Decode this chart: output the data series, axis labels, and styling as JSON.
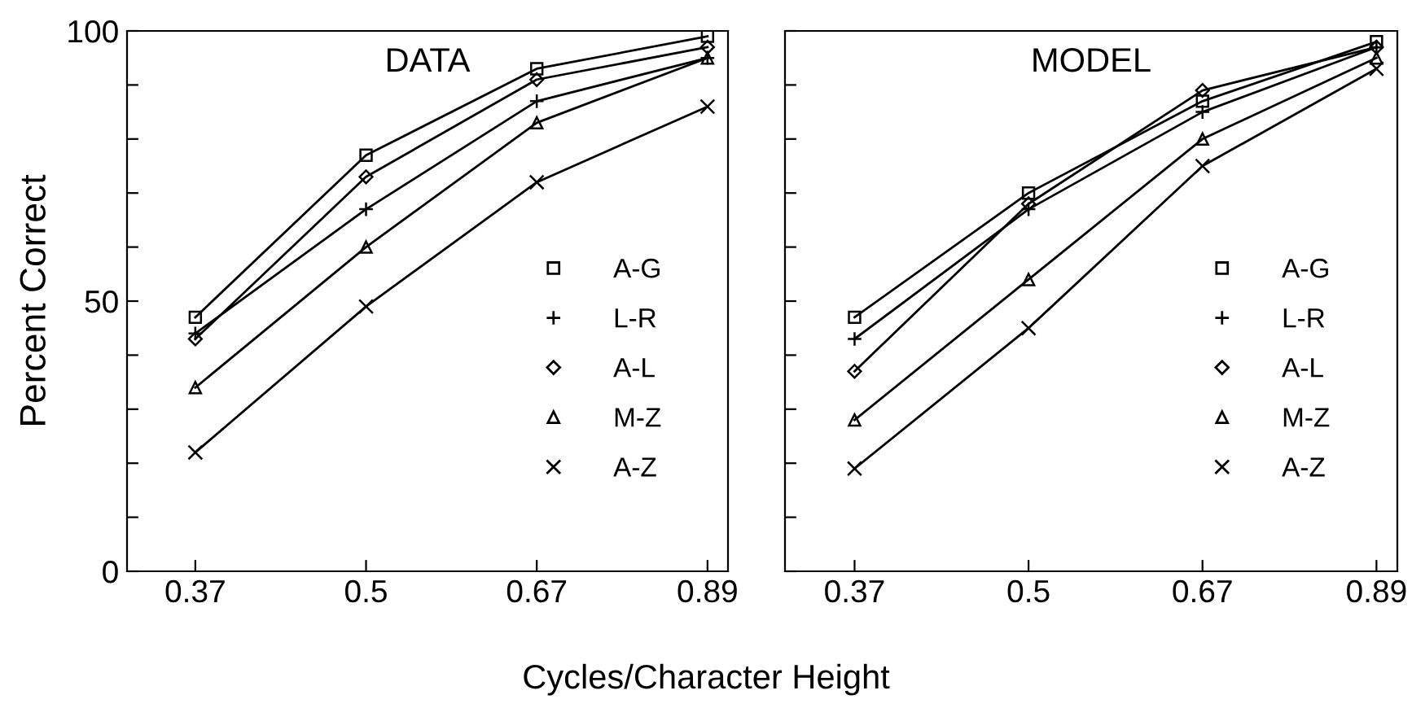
{
  "chart_data": [
    {
      "type": "line",
      "title": "DATA",
      "xlabel": "Cycles/Character Height",
      "ylabel": "Percent Correct",
      "categories": [
        "0.37",
        "0.5",
        "0.67",
        "0.89"
      ],
      "ylim": [
        0,
        100
      ],
      "yticks": [
        0,
        {
          "value": 10,
          "label": null
        },
        {
          "value": 20,
          "label": null
        },
        {
          "value": 30,
          "label": null
        },
        {
          "value": 40,
          "label": null
        },
        50,
        {
          "value": 60,
          "label": null
        },
        {
          "value": 70,
          "label": null
        },
        {
          "value": 80,
          "label": null
        },
        {
          "value": 90,
          "label": null
        },
        100
      ],
      "grid": false,
      "legend": "bottom right",
      "series": [
        {
          "name": "A-G",
          "color": "#000000",
          "marker": "square",
          "values": [
            47,
            77,
            93,
            99
          ]
        },
        {
          "name": "L-R",
          "color": "#000000",
          "marker": "cross",
          "values": [
            44,
            67,
            87,
            95
          ]
        },
        {
          "name": "A-L",
          "color": "#000000",
          "marker": "diamond",
          "values": [
            43,
            73,
            91,
            97
          ]
        },
        {
          "name": "M-Z",
          "color": "#000000",
          "marker": "triangle",
          "values": [
            34,
            60,
            83,
            95
          ]
        },
        {
          "name": "A-Z",
          "color": "#000000",
          "marker": "cross",
          "values": [
            22,
            49,
            72,
            86
          ]
        }
      ]
    },
    {
      "type": "line",
      "title": "MODEL",
      "categories": [
        "0.37",
        "0.5",
        "0.67",
        "0.89"
      ],
      "ylim": [
        0,
        100
      ],
      "yticks": [
        0,
        {
          "value": 10,
          "label": null
        },
        {
          "value": 20,
          "label": null
        },
        {
          "value": 30,
          "label": null
        },
        {
          "value": 40,
          "label": null
        },
        50,
        {
          "value": 60,
          "label": null
        },
        {
          "value": 70,
          "label": null
        },
        {
          "value": 80,
          "label": null
        },
        {
          "value": 90,
          "label": null
        },
        100
      ],
      "tick_labels": "x",
      "grid": false,
      "legend": "bottom right",
      "series": [
        {
          "name": "A-G",
          "color": "#000000",
          "marker": "square",
          "values": [
            47,
            70,
            87,
            98
          ]
        },
        {
          "name": "L-R",
          "color": "#000000",
          "marker": "cross",
          "values": [
            43,
            67,
            85,
            97
          ]
        },
        {
          "name": "A-L",
          "color": "#000000",
          "marker": "diamond",
          "values": [
            37,
            68,
            89,
            97
          ]
        },
        {
          "name": "M-Z",
          "color": "#000000",
          "marker": "triangle",
          "values": [
            28,
            54,
            80,
            95
          ]
        },
        {
          "name": "A-Z",
          "color": "#000000",
          "marker": "cross",
          "values": [
            19,
            45,
            75,
            93
          ]
        }
      ]
    }
  ]
}
